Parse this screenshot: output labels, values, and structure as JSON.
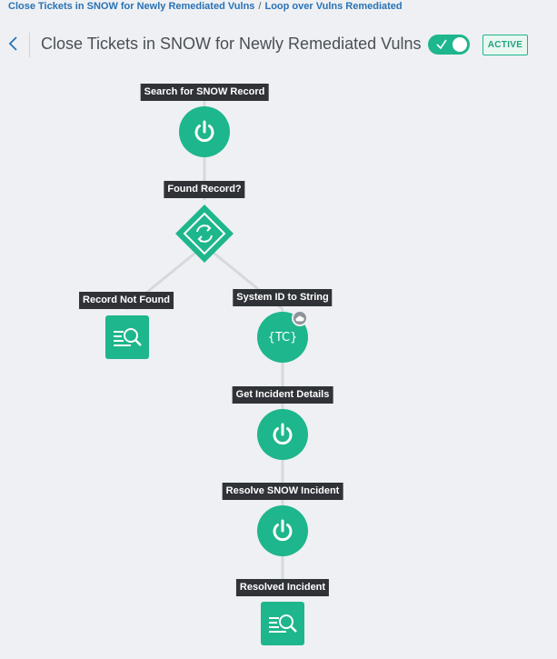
{
  "breadcrumb": {
    "parent": "Close Tickets in SNOW for Newly Remediated Vulns",
    "separator": "/",
    "current": "Loop over Vulns Remediated"
  },
  "header": {
    "title": "Close Tickets in SNOW for Newly Remediated Vulns",
    "toggle_on": true,
    "status_badge": "ACTIVE"
  },
  "colors": {
    "accent": "#1eb68c",
    "label_bg": "#2f3337",
    "edge": "#d5d9de",
    "background": "#eef0f3"
  },
  "workflow": {
    "nodes": [
      {
        "id": "search",
        "label": "Search for SNOW Record",
        "icon": "power-icon"
      },
      {
        "id": "found",
        "label": "Found Record?",
        "icon": "condition-diamond-icon"
      },
      {
        "id": "notfound",
        "label": "Record Not Found",
        "icon": "search-list-icon"
      },
      {
        "id": "sysid",
        "label": "System ID to String",
        "icon": "transform-icon",
        "icon_text": "{TC}"
      },
      {
        "id": "getinc",
        "label": "Get Incident Details",
        "icon": "power-icon"
      },
      {
        "id": "resolve",
        "label": "Resolve SNOW Incident",
        "icon": "power-icon"
      },
      {
        "id": "resolved",
        "label": "Resolved Incident",
        "icon": "search-list-icon"
      }
    ]
  }
}
